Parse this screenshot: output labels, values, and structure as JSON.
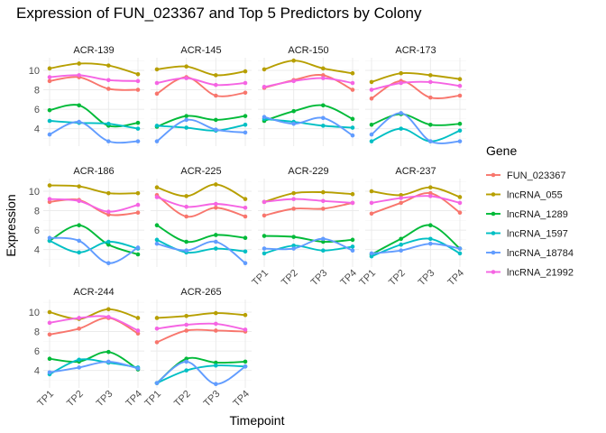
{
  "chart_data": {
    "type": "line",
    "title": "Expression of FUN_023367 and Top 5 Predictors by Colony",
    "xlabel": "Timepoint",
    "ylabel": "Expression",
    "legend_title": "Gene",
    "legend_position": "right",
    "x": [
      "TP1",
      "TP2",
      "TP3",
      "TP4"
    ],
    "y_ticks": [
      4,
      6,
      8,
      10
    ],
    "ylim": [
      2.2,
      11.3
    ],
    "colors": {
      "FUN_023367": "#F8766D",
      "lncRNA_055": "#B79F00",
      "lncRNA_1289": "#00BA38",
      "lncRNA_1597": "#00BFC4",
      "lncRNA_18784": "#619CFF",
      "lncRNA_21992": "#F564E3"
    },
    "genes": [
      "FUN_023367",
      "lncRNA_055",
      "lncRNA_1289",
      "lncRNA_1597",
      "lncRNA_18784",
      "lncRNA_21992"
    ],
    "panels": [
      {
        "colony": "ACR-139",
        "series": {
          "FUN_023367": [
            8.9,
            9.3,
            8.1,
            8.0
          ],
          "lncRNA_055": [
            10.2,
            10.7,
            10.5,
            9.6
          ],
          "lncRNA_1289": [
            5.9,
            6.4,
            4.3,
            4.6
          ],
          "lncRNA_1597": [
            4.8,
            4.6,
            4.5,
            4.0
          ],
          "lncRNA_18784": [
            3.4,
            4.7,
            2.7,
            2.7
          ],
          "lncRNA_21992": [
            9.3,
            9.5,
            9.0,
            8.9
          ]
        }
      },
      {
        "colony": "ACR-145",
        "series": {
          "FUN_023367": [
            7.6,
            9.3,
            7.4,
            7.7
          ],
          "lncRNA_055": [
            10.1,
            10.4,
            9.5,
            9.9
          ],
          "lncRNA_1289": [
            4.2,
            5.3,
            4.9,
            5.3
          ],
          "lncRNA_1597": [
            4.3,
            4.1,
            3.8,
            4.4
          ],
          "lncRNA_18784": [
            2.7,
            4.9,
            3.9,
            3.6
          ],
          "lncRNA_21992": [
            8.7,
            9.2,
            8.5,
            8.7
          ]
        }
      },
      {
        "colony": "ACR-150",
        "series": {
          "FUN_023367": [
            8.2,
            9.0,
            9.5,
            8.0
          ],
          "lncRNA_055": [
            10.1,
            11.0,
            10.2,
            9.7
          ],
          "lncRNA_1289": [
            4.8,
            5.8,
            6.4,
            5.0
          ],
          "lncRNA_1597": [
            5.0,
            4.7,
            4.3,
            4.1
          ],
          "lncRNA_18784": [
            5.2,
            4.5,
            5.1,
            3.3
          ],
          "lncRNA_21992": [
            8.3,
            8.9,
            9.2,
            8.7
          ]
        }
      },
      {
        "colony": "ACR-173",
        "series": {
          "FUN_023367": [
            7.1,
            8.9,
            7.2,
            7.4
          ],
          "lncRNA_055": [
            8.8,
            9.7,
            9.5,
            9.1
          ],
          "lncRNA_1289": [
            4.4,
            5.5,
            4.4,
            4.5
          ],
          "lncRNA_1597": [
            2.7,
            4.0,
            2.7,
            3.8
          ],
          "lncRNA_18784": [
            3.4,
            5.6,
            2.7,
            2.7
          ],
          "lncRNA_21992": [
            8.0,
            8.7,
            8.8,
            8.4
          ]
        }
      },
      {
        "colony": "ACR-186",
        "series": {
          "FUN_023367": [
            8.9,
            9.1,
            7.6,
            7.8
          ],
          "lncRNA_055": [
            10.6,
            10.5,
            9.8,
            9.8
          ],
          "lncRNA_1289": [
            4.9,
            6.5,
            4.5,
            3.5
          ],
          "lncRNA_1597": [
            4.9,
            3.7,
            4.8,
            4.1
          ],
          "lncRNA_18784": [
            5.2,
            4.9,
            2.6,
            4.2
          ],
          "lncRNA_21992": [
            9.2,
            9.0,
            7.9,
            8.6
          ]
        }
      },
      {
        "colony": "ACR-225",
        "series": {
          "FUN_023367": [
            9.6,
            7.4,
            8.3,
            7.4
          ],
          "lncRNA_055": [
            10.4,
            9.5,
            10.7,
            9.2
          ],
          "lncRNA_1289": [
            6.5,
            4.8,
            5.5,
            5.2
          ],
          "lncRNA_1597": [
            5.0,
            3.7,
            4.1,
            3.8
          ],
          "lncRNA_18784": [
            4.6,
            3.9,
            4.8,
            2.6
          ],
          "lncRNA_21992": [
            9.4,
            8.4,
            8.7,
            8.3
          ]
        }
      },
      {
        "colony": "ACR-229",
        "series": {
          "FUN_023367": [
            7.5,
            8.2,
            8.2,
            8.8
          ],
          "lncRNA_055": [
            8.9,
            9.8,
            9.9,
            9.7
          ],
          "lncRNA_1289": [
            5.4,
            5.3,
            4.8,
            5.0
          ],
          "lncRNA_1597": [
            3.6,
            4.4,
            3.9,
            4.3
          ],
          "lncRNA_18784": [
            4.1,
            4.1,
            5.1,
            3.9
          ],
          "lncRNA_21992": [
            8.9,
            9.2,
            9.0,
            8.8
          ]
        }
      },
      {
        "colony": "ACR-237",
        "series": {
          "FUN_023367": [
            7.7,
            8.8,
            9.8,
            7.8
          ],
          "lncRNA_055": [
            10.0,
            9.6,
            10.4,
            9.4
          ],
          "lncRNA_1289": [
            3.5,
            5.1,
            6.5,
            4.1
          ],
          "lncRNA_1597": [
            3.3,
            4.5,
            5.1,
            3.6
          ],
          "lncRNA_18784": [
            3.6,
            3.9,
            4.6,
            4.1
          ],
          "lncRNA_21992": [
            8.8,
            9.3,
            9.5,
            8.8
          ]
        }
      },
      {
        "colony": "ACR-244",
        "series": {
          "FUN_023367": [
            7.7,
            8.3,
            9.4,
            7.8
          ],
          "lncRNA_055": [
            10.0,
            9.3,
            10.3,
            9.4
          ],
          "lncRNA_1289": [
            5.2,
            4.9,
            5.9,
            4.1
          ],
          "lncRNA_1597": [
            3.6,
            5.1,
            4.8,
            4.3
          ],
          "lncRNA_18784": [
            3.8,
            4.3,
            4.9,
            4.2
          ],
          "lncRNA_21992": [
            8.9,
            9.4,
            9.5,
            8.1
          ]
        }
      },
      {
        "colony": "ACR-265",
        "series": {
          "FUN_023367": [
            6.9,
            8.1,
            8.1,
            8.0
          ],
          "lncRNA_055": [
            9.4,
            9.6,
            9.9,
            9.7
          ],
          "lncRNA_1289": [
            2.7,
            5.2,
            4.8,
            4.9
          ],
          "lncRNA_1597": [
            2.7,
            4.0,
            4.5,
            4.4
          ],
          "lncRNA_18784": [
            2.7,
            4.9,
            2.6,
            4.4
          ],
          "lncRNA_21992": [
            8.3,
            8.7,
            8.8,
            8.2
          ]
        }
      }
    ]
  }
}
